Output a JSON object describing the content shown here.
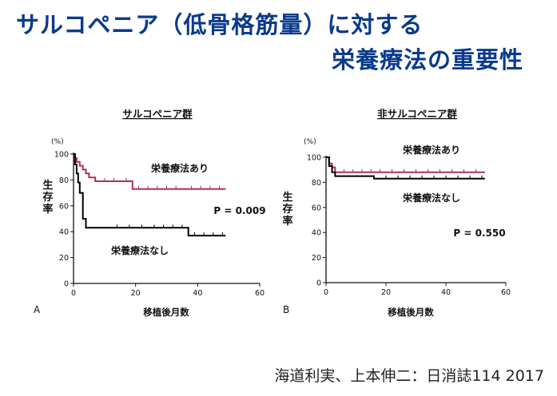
{
  "slide": {
    "title_line1": "サルコペニア（低骨格筋量）に対する",
    "title_line2": "栄養療法の重要性",
    "citation": "海道利実、上本伸二：日消誌114 2017",
    "title_color": "#0a3a8c"
  },
  "chart_data": [
    {
      "type": "line",
      "panel_label": "A",
      "title": "サルコペニア群",
      "xlabel": "移植後月数",
      "ylabel": "生存率",
      "y_unit": "(%)",
      "xlim": [
        0,
        60
      ],
      "ylim": [
        0,
        100
      ],
      "xticks": [
        0,
        20,
        40,
        60
      ],
      "yticks": [
        0,
        20,
        40,
        60,
        80,
        100
      ],
      "grid": false,
      "p_value": "P = 0.009",
      "series": [
        {
          "name": "栄養療法あり",
          "color": "#b0305a",
          "x": [
            0,
            0.5,
            0.5,
            1,
            1,
            2,
            2,
            3,
            3,
            4,
            4,
            5,
            5,
            7,
            7,
            19,
            19,
            49
          ],
          "y": [
            100,
            100,
            97,
            97,
            94,
            94,
            91,
            91,
            88,
            88,
            85,
            85,
            82,
            82,
            79,
            79,
            73,
            73
          ],
          "censor_x": [
            10,
            13,
            17,
            21,
            24,
            27,
            30,
            33,
            38,
            41,
            44,
            47
          ]
        },
        {
          "name": "栄養療法なし",
          "color": "#000000",
          "x": [
            0,
            0.5,
            0.5,
            1,
            1,
            1.5,
            1.5,
            2,
            2,
            3,
            3,
            4,
            4,
            37,
            37,
            49
          ],
          "y": [
            100,
            100,
            92,
            92,
            85,
            85,
            78,
            78,
            70,
            70,
            50,
            50,
            43,
            43,
            37,
            37
          ],
          "censor_x": [
            14,
            18,
            22,
            26,
            29,
            32,
            35,
            39,
            42,
            45,
            48
          ]
        }
      ]
    },
    {
      "type": "line",
      "panel_label": "B",
      "title": "非サルコペニア群",
      "xlabel": "移植後月数",
      "ylabel": "生存率",
      "y_unit": "(%)",
      "xlim": [
        0,
        60
      ],
      "ylim": [
        0,
        100
      ],
      "xticks": [
        0,
        20,
        40,
        60
      ],
      "yticks": [
        0,
        20,
        40,
        60,
        80,
        100
      ],
      "grid": false,
      "p_value": "P = 0.550",
      "series": [
        {
          "name": "栄養療法あり",
          "color": "#b0305a",
          "x": [
            0,
            1,
            1,
            2,
            2,
            3,
            3,
            53
          ],
          "y": [
            100,
            100,
            95,
            95,
            92,
            92,
            88,
            88
          ],
          "censor_x": [
            6,
            9,
            12,
            15,
            18,
            22,
            26,
            30,
            34,
            38,
            42,
            46,
            50
          ]
        },
        {
          "name": "栄養療法なし",
          "color": "#000000",
          "x": [
            0,
            1,
            1,
            2,
            2,
            3,
            3,
            16,
            16,
            53
          ],
          "y": [
            100,
            100,
            93,
            93,
            88,
            88,
            85,
            85,
            83,
            83
          ],
          "censor_x": [
            20,
            24,
            28,
            32,
            36,
            40,
            44,
            48,
            52
          ]
        }
      ]
    }
  ]
}
